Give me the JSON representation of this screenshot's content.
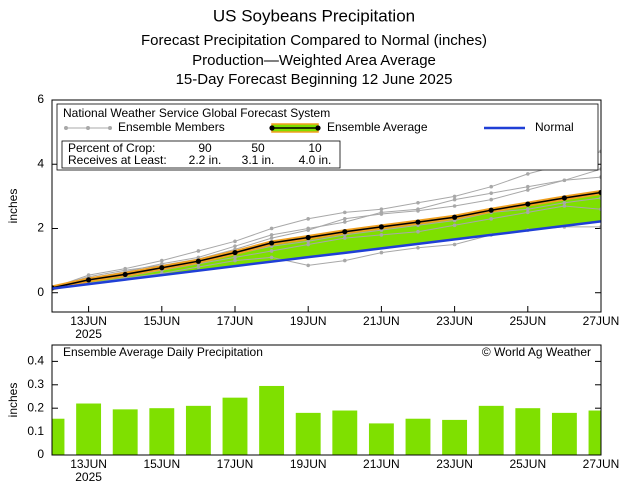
{
  "chart_data": [
    {
      "type": "line",
      "titles": [
        "US Soybeans Precipitation",
        "Forecast Precipitation Compared to Normal (inches)",
        "Production—Weighted Area Average",
        "15-Day Forecast Beginning 12 June 2025"
      ],
      "y_label": "inches",
      "legend_title": "National Weather Service Global Forecast System",
      "percent_table": [
        [
          "Percent of Crop:",
          "90",
          "50",
          "10"
        ],
        [
          "Receives at Least:",
          "2.2 in.",
          "3.1 in.",
          "4.0 in."
        ]
      ],
      "x": [
        12,
        13,
        14,
        15,
        16,
        17,
        18,
        19,
        20,
        21,
        22,
        23,
        24,
        25,
        26,
        27
      ],
      "xlim": [
        12,
        27
      ],
      "xticks": [
        {
          "value": 13,
          "label": "13JUN"
        },
        {
          "value": 15,
          "label": "15JUN"
        },
        {
          "value": 17,
          "label": "17JUN"
        },
        {
          "value": 19,
          "label": "19JUN"
        },
        {
          "value": 21,
          "label": "21JUN"
        },
        {
          "value": 23,
          "label": "23JUN"
        },
        {
          "value": 25,
          "label": "25JUN"
        },
        {
          "value": 27,
          "label": "27JUN"
        }
      ],
      "x_year_label": "2025",
      "ylim": [
        -0.6,
        6
      ],
      "yticks": [
        0,
        2,
        4,
        6
      ],
      "members": {
        "name": "Ensemble Members",
        "color": "#a8a8a8",
        "values": [
          [
            0.15,
            0.55,
            0.75,
            1.0,
            1.3,
            1.6,
            2.0,
            2.3,
            2.5,
            2.6,
            2.8,
            3.0,
            3.3,
            3.7,
            4.0,
            4.4
          ],
          [
            0.15,
            0.3,
            0.45,
            0.6,
            0.8,
            1.0,
            1.1,
            0.85,
            1.0,
            1.25,
            1.4,
            1.5,
            1.8,
            1.95,
            2.05,
            2.05
          ],
          [
            0.15,
            0.45,
            0.65,
            0.9,
            1.1,
            1.45,
            1.8,
            2.0,
            2.2,
            2.5,
            2.6,
            2.9,
            3.1,
            3.3,
            3.5,
            3.6
          ],
          [
            0.15,
            0.4,
            0.55,
            0.75,
            0.95,
            1.2,
            1.45,
            1.6,
            1.8,
            1.95,
            2.1,
            2.25,
            2.5,
            2.6,
            2.8,
            2.95
          ],
          [
            0.15,
            0.5,
            0.7,
            0.85,
            1.05,
            1.35,
            1.7,
            1.95,
            2.3,
            2.45,
            2.55,
            2.7,
            2.9,
            3.2,
            3.5,
            3.85
          ],
          [
            0.15,
            0.35,
            0.5,
            0.7,
            0.9,
            1.1,
            1.3,
            1.5,
            1.7,
            1.8,
            1.9,
            2.1,
            2.3,
            2.5,
            2.7,
            2.6
          ]
        ]
      },
      "fill_color": "#7ee000",
      "series": [
        {
          "name": "Ensemble Average",
          "color": "#000000",
          "values": [
            0.15,
            0.4,
            0.57,
            0.78,
            0.98,
            1.25,
            1.55,
            1.72,
            1.9,
            2.05,
            2.2,
            2.35,
            2.57,
            2.76,
            2.95,
            3.12
          ]
        },
        {
          "name": "Normal",
          "color": "#1f3fd6",
          "values": [
            0.13,
            0.27,
            0.41,
            0.55,
            0.69,
            0.83,
            0.97,
            1.11,
            1.24,
            1.38,
            1.52,
            1.66,
            1.8,
            1.94,
            2.08,
            2.22
          ]
        }
      ]
    },
    {
      "type": "bar",
      "title": "Ensemble Average Daily Precipitation",
      "credit": "© World Ag Weather",
      "y_label": "inches",
      "x": [
        12,
        13,
        14,
        15,
        16,
        17,
        18,
        19,
        20,
        21,
        22,
        23,
        24,
        25,
        26,
        27
      ],
      "xlim": [
        12,
        27
      ],
      "xticks": [
        {
          "value": 13,
          "label": "13JUN"
        },
        {
          "value": 15,
          "label": "15JUN"
        },
        {
          "value": 17,
          "label": "17JUN"
        },
        {
          "value": 19,
          "label": "19JUN"
        },
        {
          "value": 21,
          "label": "21JUN"
        },
        {
          "value": 23,
          "label": "23JUN"
        },
        {
          "value": 25,
          "label": "25JUN"
        },
        {
          "value": 27,
          "label": "27JUN"
        }
      ],
      "x_year_label": "2025",
      "ylim": [
        0,
        0.47
      ],
      "yticks": [
        0,
        0.1,
        0.2,
        0.3,
        0.4
      ],
      "color": "#7fe000",
      "values": [
        0.155,
        0.22,
        0.195,
        0.2,
        0.21,
        0.245,
        0.295,
        0.18,
        0.19,
        0.135,
        0.155,
        0.15,
        0.21,
        0.2,
        0.18,
        0.19
      ]
    }
  ]
}
